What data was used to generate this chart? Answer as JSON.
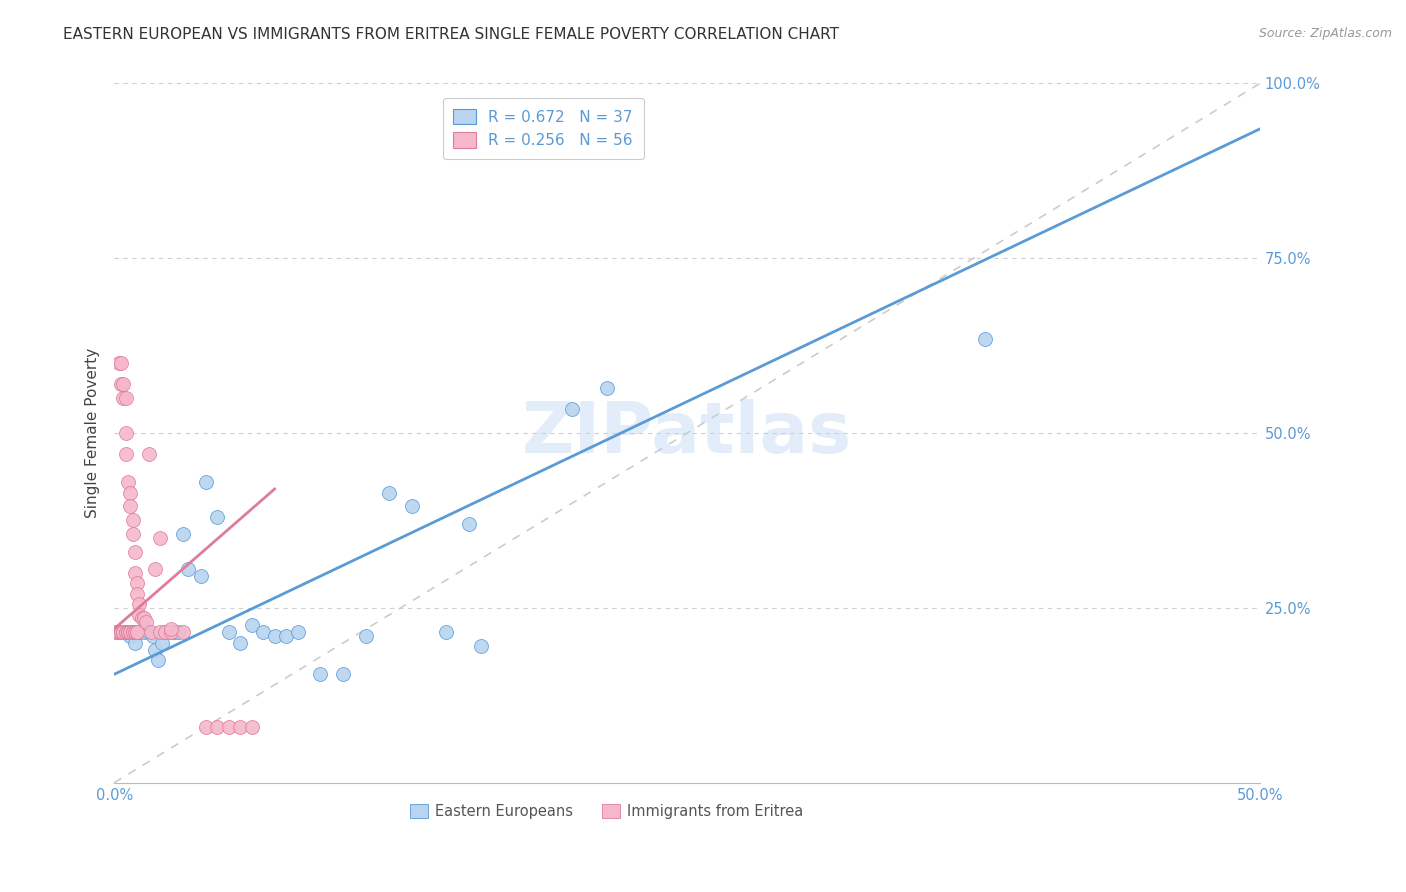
{
  "title": "EASTERN EUROPEAN VS IMMIGRANTS FROM ERITREA SINGLE FEMALE POVERTY CORRELATION CHART",
  "source": "Source: ZipAtlas.com",
  "ylabel": "Single Female Poverty",
  "xlim": [
    0.0,
    0.5
  ],
  "ylim": [
    0.0,
    1.0
  ],
  "xticks": [
    0.0,
    0.1,
    0.2,
    0.3,
    0.4,
    0.5
  ],
  "yticks": [
    0.25,
    0.5,
    0.75,
    1.0
  ],
  "xticklabels": [
    "0.0%",
    "",
    "",
    "",
    "",
    "50.0%"
  ],
  "yticklabels": [
    "25.0%",
    "50.0%",
    "75.0%",
    "100.0%"
  ],
  "legend_R1": "R = 0.672   N = 37",
  "legend_R2": "R = 0.256   N = 56",
  "watermark": "ZIPatlas",
  "blue_color": "#5b9bd5",
  "pink_color": "#e07b9a",
  "light_blue": "#b8d4f0",
  "light_pink": "#f5b8cb",
  "scatter_blue": [
    [
      0.004,
      0.215
    ],
    [
      0.007,
      0.21
    ],
    [
      0.009,
      0.2
    ],
    [
      0.011,
      0.215
    ],
    [
      0.013,
      0.215
    ],
    [
      0.015,
      0.215
    ],
    [
      0.017,
      0.21
    ],
    [
      0.018,
      0.19
    ],
    [
      0.019,
      0.175
    ],
    [
      0.021,
      0.2
    ],
    [
      0.022,
      0.215
    ],
    [
      0.025,
      0.215
    ],
    [
      0.026,
      0.215
    ],
    [
      0.028,
      0.215
    ],
    [
      0.03,
      0.355
    ],
    [
      0.032,
      0.305
    ],
    [
      0.038,
      0.295
    ],
    [
      0.04,
      0.43
    ],
    [
      0.045,
      0.38
    ],
    [
      0.05,
      0.215
    ],
    [
      0.055,
      0.2
    ],
    [
      0.06,
      0.225
    ],
    [
      0.065,
      0.215
    ],
    [
      0.07,
      0.21
    ],
    [
      0.075,
      0.21
    ],
    [
      0.08,
      0.215
    ],
    [
      0.09,
      0.155
    ],
    [
      0.1,
      0.155
    ],
    [
      0.11,
      0.21
    ],
    [
      0.12,
      0.415
    ],
    [
      0.13,
      0.395
    ],
    [
      0.145,
      0.215
    ],
    [
      0.155,
      0.37
    ],
    [
      0.16,
      0.195
    ],
    [
      0.2,
      0.535
    ],
    [
      0.215,
      0.565
    ],
    [
      0.38,
      0.635
    ]
  ],
  "scatter_pink": [
    [
      0.001,
      0.215
    ],
    [
      0.001,
      0.215
    ],
    [
      0.002,
      0.215
    ],
    [
      0.002,
      0.215
    ],
    [
      0.003,
      0.215
    ],
    [
      0.003,
      0.215
    ],
    [
      0.004,
      0.215
    ],
    [
      0.004,
      0.215
    ],
    [
      0.005,
      0.215
    ],
    [
      0.005,
      0.215
    ],
    [
      0.006,
      0.215
    ],
    [
      0.006,
      0.215
    ],
    [
      0.007,
      0.215
    ],
    [
      0.007,
      0.215
    ],
    [
      0.008,
      0.215
    ],
    [
      0.008,
      0.215
    ],
    [
      0.009,
      0.215
    ],
    [
      0.009,
      0.215
    ],
    [
      0.01,
      0.215
    ],
    [
      0.01,
      0.215
    ],
    [
      0.003,
      0.57
    ],
    [
      0.004,
      0.55
    ],
    [
      0.005,
      0.5
    ],
    [
      0.005,
      0.47
    ],
    [
      0.006,
      0.43
    ],
    [
      0.007,
      0.415
    ],
    [
      0.007,
      0.395
    ],
    [
      0.008,
      0.375
    ],
    [
      0.008,
      0.355
    ],
    [
      0.009,
      0.33
    ],
    [
      0.009,
      0.3
    ],
    [
      0.01,
      0.285
    ],
    [
      0.01,
      0.27
    ],
    [
      0.011,
      0.255
    ],
    [
      0.011,
      0.24
    ],
    [
      0.012,
      0.235
    ],
    [
      0.013,
      0.235
    ],
    [
      0.014,
      0.23
    ],
    [
      0.015,
      0.47
    ],
    [
      0.016,
      0.215
    ],
    [
      0.018,
      0.305
    ],
    [
      0.02,
      0.215
    ],
    [
      0.022,
      0.215
    ],
    [
      0.025,
      0.215
    ],
    [
      0.03,
      0.215
    ],
    [
      0.04,
      0.08
    ],
    [
      0.045,
      0.08
    ],
    [
      0.05,
      0.08
    ],
    [
      0.055,
      0.08
    ],
    [
      0.06,
      0.08
    ],
    [
      0.002,
      0.6
    ],
    [
      0.003,
      0.6
    ],
    [
      0.004,
      0.57
    ],
    [
      0.005,
      0.55
    ],
    [
      0.02,
      0.35
    ],
    [
      0.025,
      0.22
    ]
  ],
  "blue_line_x": [
    0.0,
    0.5
  ],
  "blue_line_y": [
    0.155,
    0.935
  ],
  "pink_line_x": [
    0.0,
    0.07
  ],
  "pink_line_y": [
    0.22,
    0.42
  ],
  "diag_line_x": [
    0.0,
    0.5
  ],
  "diag_line_y": [
    0.0,
    1.0
  ],
  "bg_color": "#ffffff",
  "grid_color": "#d0d0d0",
  "title_fontsize": 11,
  "ylabel_fontsize": 11,
  "tick_fontsize": 10.5,
  "tick_color": "#5b9bd5",
  "legend_fontsize": 11,
  "bottom_legend_label1": "Eastern Europeans",
  "bottom_legend_label2": "Immigrants from Eritrea"
}
